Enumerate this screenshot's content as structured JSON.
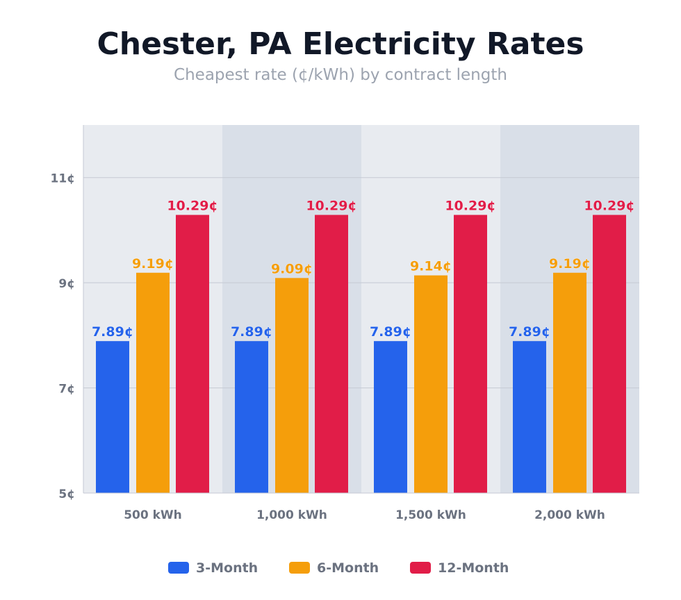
{
  "chart_data": {
    "type": "bar",
    "title": "Chester, PA Electricity Rates",
    "subtitle": "Cheapest rate (¢/kWh) by contract length",
    "xlabel": "",
    "ylabel": "",
    "categories": [
      "500 kWh",
      "1,000 kWh",
      "1,500 kWh",
      "2,000 kWh"
    ],
    "series": [
      {
        "name": "3-Month",
        "color": "#2563eb",
        "values": [
          7.89,
          7.89,
          7.89,
          7.89
        ]
      },
      {
        "name": "6-Month",
        "color": "#f59e0b",
        "values": [
          9.19,
          9.09,
          9.14,
          9.19
        ]
      },
      {
        "name": "12-Month",
        "color": "#e11d48",
        "values": [
          10.29,
          10.29,
          10.29,
          10.29
        ]
      }
    ],
    "value_suffix": "¢",
    "yticks": [
      5,
      7,
      9,
      11
    ],
    "ytick_labels": [
      "5¢",
      "7¢",
      "9¢",
      "11¢"
    ],
    "ylim": [
      5,
      12
    ],
    "grid": true,
    "legend_position": "bottom",
    "band_colors": [
      "#e8ebf0",
      "#d9dfe8"
    ]
  }
}
